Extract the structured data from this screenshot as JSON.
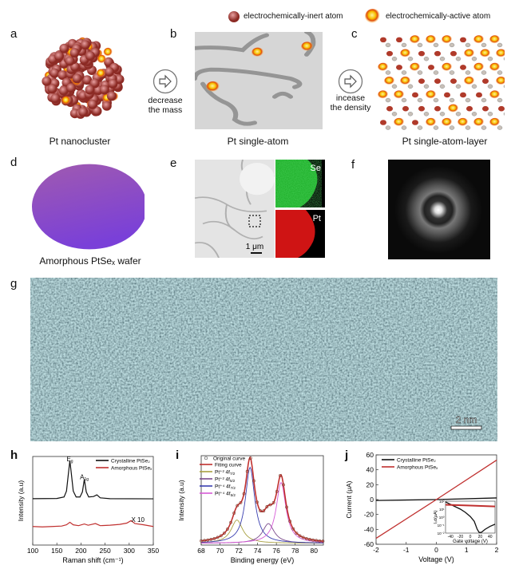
{
  "legend": {
    "inert": "electrochemically-inert atom",
    "active": "electrochemically-active atom"
  },
  "panels": {
    "a": "a",
    "b": "b",
    "c": "c",
    "d": "d",
    "e": "e",
    "f": "f",
    "g": "g",
    "h": "h",
    "i": "i",
    "j": "j"
  },
  "captions": {
    "a": "Pt nanocluster",
    "b": "Pt single-atom",
    "c": "Pt single-atom-layer",
    "d": "Amorphous PtSeₓ wafer"
  },
  "arrows": {
    "first_line1": "decrease",
    "first_line2": "the mass",
    "second_line1": "incease",
    "second_line2": "the density"
  },
  "eds": {
    "se": "Se",
    "pt": "Pt",
    "scale": "1 μm"
  },
  "hrtem": {
    "scale": "2 nm"
  },
  "colors": {
    "inert": "#9b3a32",
    "active": "#f5b800",
    "wafer": "#8a4fc0",
    "se": "#1fae2a",
    "pt": "#d11414",
    "teal": "#2f6f72"
  },
  "chart_data": [
    {
      "id": "h",
      "type": "line",
      "xlabel": "Raman shift (cm⁻¹)",
      "ylabel": "Intensity (a.u)",
      "xlim": [
        100,
        350
      ],
      "ylim": [
        0,
        1.05
      ],
      "xticks": [
        100,
        150,
        200,
        250,
        300,
        350
      ],
      "annotations": [
        {
          "text": "E",
          "sub": "g",
          "x": 177,
          "y": 1.03
        },
        {
          "text": "A",
          "sub": "1g",
          "x": 207,
          "y": 0.82
        },
        {
          "text": "X 10",
          "sub": "",
          "x": 318,
          "y": 0.31
        }
      ],
      "series": [
        {
          "name": "Crystalline PtSe₂",
          "color": "#111111",
          "points": [
            [
              100,
              0.55
            ],
            [
              150,
              0.552
            ],
            [
              165,
              0.57
            ],
            [
              170,
              0.64
            ],
            [
              174,
              0.85
            ],
            [
              177,
              1.0
            ],
            [
              180,
              0.85
            ],
            [
              184,
              0.64
            ],
            [
              190,
              0.57
            ],
            [
              198,
              0.57
            ],
            [
              203,
              0.63
            ],
            [
              207,
              0.78
            ],
            [
              211,
              0.63
            ],
            [
              216,
              0.57
            ],
            [
              226,
              0.575
            ],
            [
              233,
              0.595
            ],
            [
              240,
              0.56
            ],
            [
              260,
              0.55
            ],
            [
              350,
              0.548
            ]
          ]
        },
        {
          "name": "Amorphous PtSeₓ",
          "color": "#c0302f",
          "points": [
            [
              100,
              0.22
            ],
            [
              120,
              0.215
            ],
            [
              140,
              0.22
            ],
            [
              160,
              0.225
            ],
            [
              170,
              0.24
            ],
            [
              177,
              0.27
            ],
            [
              184,
              0.24
            ],
            [
              195,
              0.23
            ],
            [
              207,
              0.25
            ],
            [
              215,
              0.235
            ],
            [
              230,
              0.255
            ],
            [
              240,
              0.23
            ],
            [
              260,
              0.235
            ],
            [
              280,
              0.245
            ],
            [
              295,
              0.26
            ],
            [
              304,
              0.29
            ],
            [
              312,
              0.255
            ],
            [
              330,
              0.24
            ],
            [
              350,
              0.22
            ]
          ]
        }
      ]
    },
    {
      "id": "i",
      "type": "line",
      "xlabel": "Binding energy (eV)",
      "ylabel": "Intensity (a.u)",
      "xlim": [
        68,
        81
      ],
      "ylim": [
        0,
        1.0
      ],
      "xticks": [
        68,
        70,
        72,
        74,
        76,
        78,
        80
      ],
      "original_curve": "Original curve",
      "fitting_curve": "Fiting curve",
      "fit_color": "#c0302f",
      "components": [
        {
          "name": "Pt⁺² 4f",
          "sub": "7/2",
          "center": 71.8,
          "amp": 0.26,
          "width": 0.75,
          "color": "#a8a040"
        },
        {
          "name": "Pt⁺² 4f",
          "sub": "5/2",
          "center": 75.15,
          "amp": 0.22,
          "width": 0.75,
          "color": "#7a4a8c"
        },
        {
          "name": "Pt⁺⁴ 4f",
          "sub": "7/2",
          "center": 73.2,
          "amp": 0.85,
          "width": 0.6,
          "color": "#3a3fb0"
        },
        {
          "name": "Pt⁺⁴ 4f",
          "sub": "5/2",
          "center": 76.5,
          "amp": 0.68,
          "width": 0.62,
          "color": "#d65ad6"
        }
      ]
    },
    {
      "id": "j",
      "type": "line",
      "xlabel": "Voltage (V)",
      "ylabel": "Current (μA)",
      "xlim": [
        -2,
        2
      ],
      "ylim": [
        -60,
        60
      ],
      "xticks": [
        -2,
        -1,
        0,
        1,
        2
      ],
      "yticks": [
        -60,
        -40,
        -20,
        0,
        20,
        40,
        60
      ],
      "series": [
        {
          "name": "Crystalline PtSe₂",
          "color": "#111111",
          "points": [
            [
              -2,
              -1.2
            ],
            [
              0,
              0
            ],
            [
              2,
              2.2
            ]
          ]
        },
        {
          "name": "Amorphous PtSeₓ",
          "color": "#c0302f",
          "points": [
            [
              -2,
              -52
            ],
            [
              0,
              0
            ],
            [
              2,
              53
            ]
          ]
        }
      ],
      "inset": {
        "xlabel": "Gate voltage (V)",
        "ylabel": "Iₛd(μA)",
        "xlim": [
          -50,
          50
        ],
        "ylog": [
          -2,
          2
        ],
        "xticks": [
          -40,
          -20,
          0,
          20,
          40
        ],
        "yticks": [
          "10²",
          "10¹",
          "10⁰",
          "10⁻¹",
          "10⁻²"
        ],
        "series": [
          {
            "name": "Crystalline PtSe₂",
            "color": "#111111",
            "points": [
              [
                -50,
                80
              ],
              [
                -40,
                40
              ],
              [
                -30,
                20
              ],
              [
                -20,
                10
              ],
              [
                -10,
                4
              ],
              [
                0,
                1.2
              ],
              [
                8,
                0.3
              ],
              [
                14,
                0.03
              ],
              [
                18,
                0.012
              ],
              [
                22,
                0.012
              ],
              [
                30,
                0.03
              ],
              [
                40,
                0.07
              ],
              [
                50,
                0.13
              ]
            ]
          },
          {
            "name": "Amorphous PtSeₓ",
            "color": "#c0302f",
            "points": [
              [
                -50,
                35
              ],
              [
                0,
                28
              ],
              [
                50,
                22
              ]
            ]
          }
        ]
      }
    }
  ]
}
